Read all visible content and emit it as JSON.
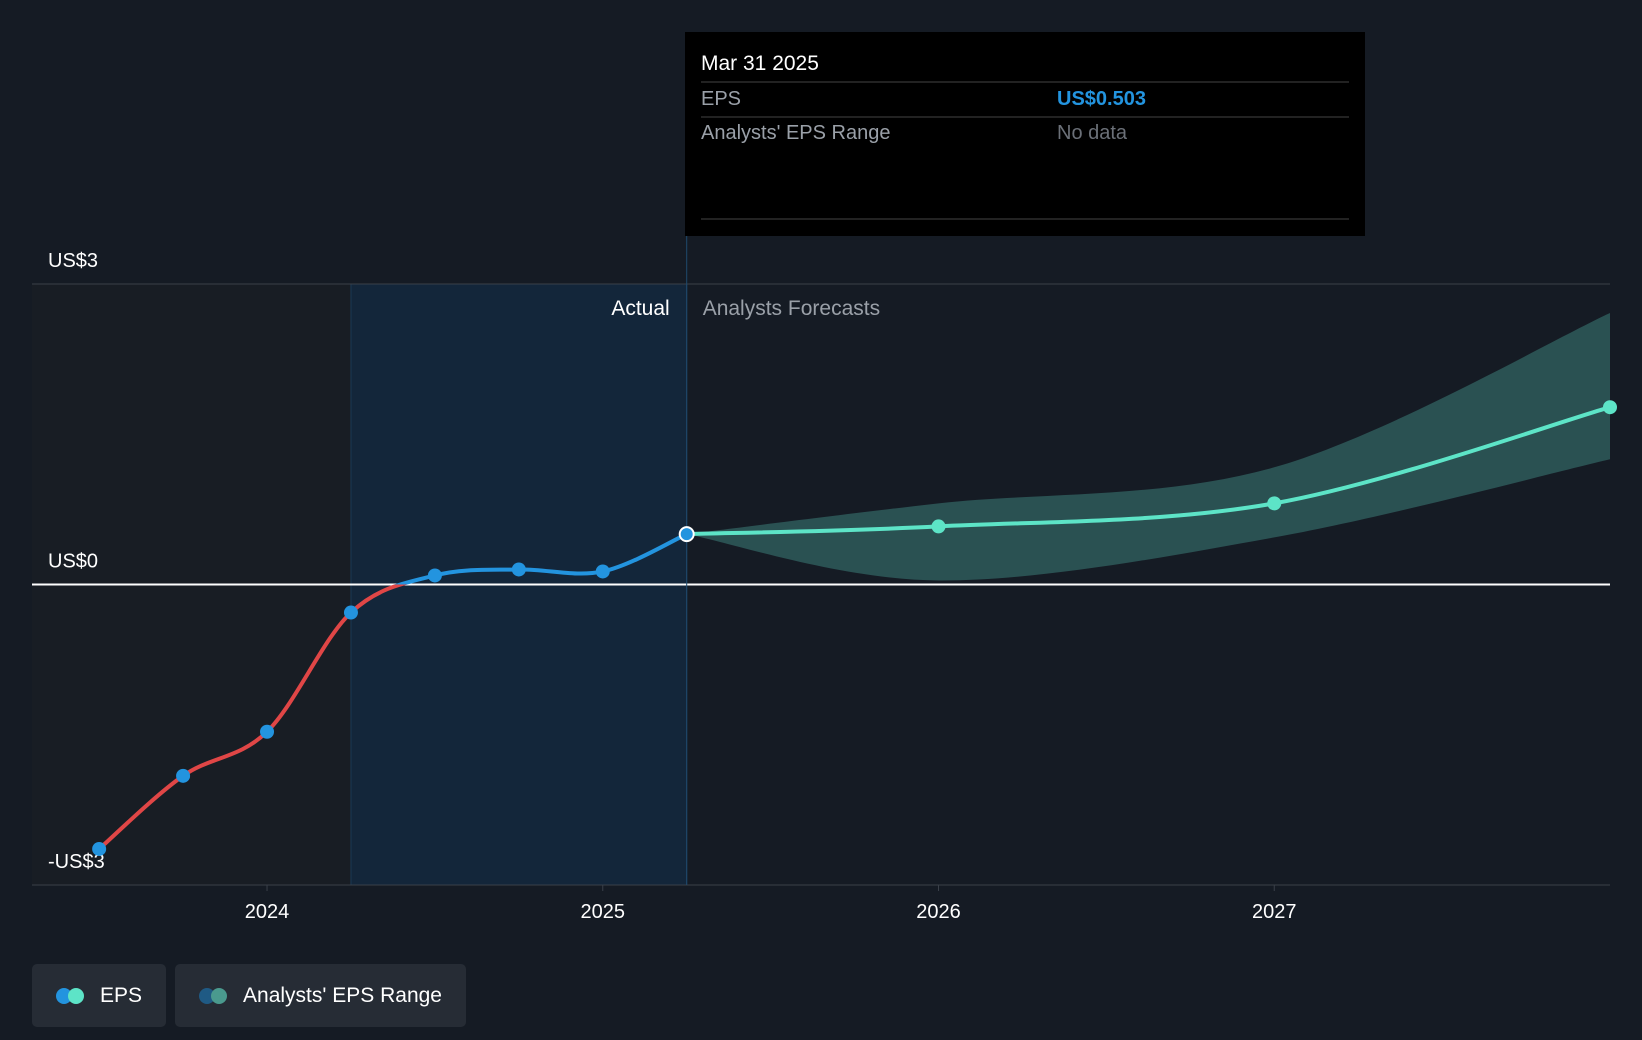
{
  "chart_data": {
    "type": "line",
    "xlim": [
      2023.3,
      2028
    ],
    "xticks": [
      2024,
      2025,
      2026,
      2027
    ],
    "ylim": [
      -3,
      3
    ],
    "yticks": [
      {
        "value": 3,
        "label": "US$3"
      },
      {
        "value": 0,
        "label": "US$0"
      },
      {
        "value": -3,
        "label": "-US$3"
      }
    ],
    "annotations": {
      "actual": "Actual",
      "forecast": "Analysts Forecasts"
    },
    "series": [
      {
        "name": "EPS",
        "color": "#2394df",
        "negative_color": "#e04646",
        "forecast_color": "#5de4c7",
        "x": [
          2023.5,
          2023.75,
          2024,
          2024.25,
          2024.5,
          2024.75,
          2025,
          2025.25,
          2026,
          2027,
          2028
        ],
        "values": [
          -2.64,
          -1.91,
          -1.47,
          -0.28,
          0.09,
          0.15,
          0.13,
          0.503,
          0.58,
          0.81,
          1.77
        ]
      },
      {
        "name": "Analysts' EPS Range",
        "color": "#2e5a5a",
        "x": [
          2025.25,
          2026,
          2027,
          2028
        ],
        "low": [
          0.503,
          0.04,
          0.47,
          1.25
        ],
        "high": [
          0.503,
          0.81,
          1.17,
          2.71
        ]
      }
    ],
    "tooltip": {
      "title": "Mar 31 2025",
      "rows": [
        {
          "label": "EPS",
          "value": "US$0.503"
        },
        {
          "label": "Analysts' EPS Range",
          "value": "No data"
        }
      ]
    }
  }
}
